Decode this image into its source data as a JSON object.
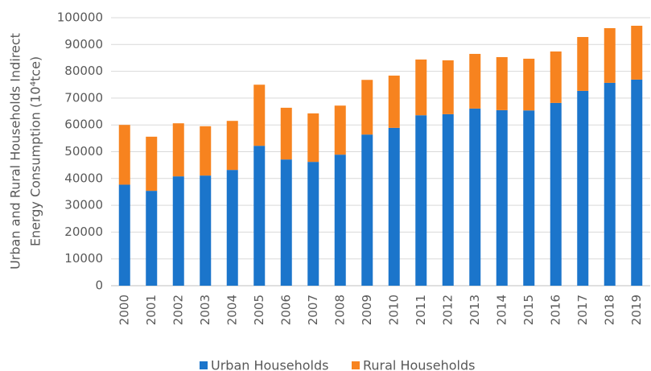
{
  "chart_data": {
    "type": "stacked_bar",
    "ylabel": [
      "Urban and Rural Households Indirect",
      "Energy Consumption (10⁴tce)"
    ],
    "categories": [
      "2000",
      "2001",
      "2002",
      "2003",
      "2004",
      "2005",
      "2006",
      "2007",
      "2008",
      "2009",
      "2010",
      "2011",
      "2012",
      "2013",
      "2014",
      "2015",
      "2016",
      "2017",
      "2018",
      "2019"
    ],
    "series": [
      {
        "name": "Urban Households",
        "color": "#1b75cb",
        "values": [
          37700,
          35400,
          40800,
          41100,
          43200,
          52200,
          47100,
          46200,
          48900,
          56400,
          58900,
          63600,
          64000,
          66100,
          65500,
          65400,
          68200,
          72700,
          75700,
          76900
        ]
      },
      {
        "name": "Rural Households",
        "color": "#f7831f",
        "values": [
          22300,
          20200,
          19800,
          18400,
          18300,
          22800,
          19300,
          18100,
          18300,
          20400,
          19500,
          20800,
          20100,
          20400,
          19800,
          19300,
          19200,
          20100,
          20400,
          20100
        ]
      }
    ],
    "ylim": [
      0,
      100000
    ],
    "yticks": [
      0,
      10000,
      20000,
      30000,
      40000,
      50000,
      60000,
      70000,
      80000,
      90000,
      100000
    ],
    "grid": true,
    "legend": "bottom"
  }
}
